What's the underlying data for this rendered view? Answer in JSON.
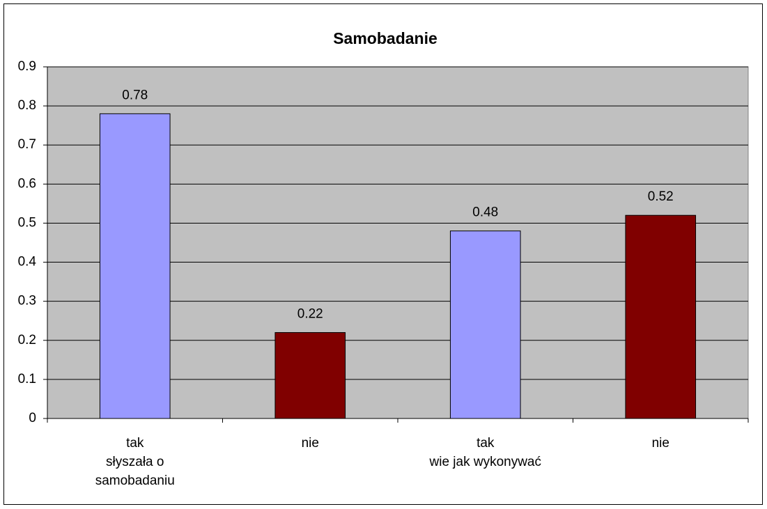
{
  "chart_data": {
    "type": "bar",
    "title": "Samobadanie",
    "categories": [
      [
        "tak",
        "słyszała o",
        "samobadaniu"
      ],
      [
        "nie"
      ],
      [
        "tak",
        "wie jak wykonywać"
      ],
      [
        "nie"
      ]
    ],
    "values": [
      0.78,
      0.22,
      0.48,
      0.52
    ],
    "colors": [
      "#9999ff",
      "#800000",
      "#9999ff",
      "#800000"
    ],
    "ylim": [
      0,
      0.9
    ],
    "yticks": [
      0,
      0.1,
      0.2,
      0.3,
      0.4,
      0.5,
      0.6,
      0.7,
      0.8,
      0.9
    ],
    "grid": true
  }
}
